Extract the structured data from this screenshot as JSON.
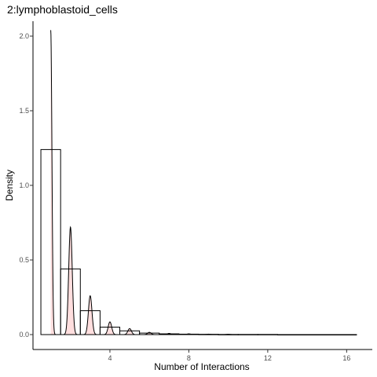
{
  "chart_data": {
    "type": "histogram+density",
    "title": "2:lymphoblastoid_cells",
    "xlabel": "Number of Interactions",
    "ylabel": "Density",
    "xlim": [
      0.1,
      17.3
    ],
    "ylim": [
      -0.1,
      2.1
    ],
    "x_ticks": [
      4,
      8,
      12,
      16
    ],
    "y_ticks": [
      0.0,
      0.5,
      1.0,
      1.5,
      2.0
    ],
    "x_tick_labels": [
      "4",
      "8",
      "12",
      "16"
    ],
    "y_tick_labels": [
      "0.0",
      "0.5",
      "1.0",
      "1.5",
      "2.0"
    ],
    "grid": false,
    "legend": "none",
    "histogram": {
      "bin_width": 1,
      "bins": [
        {
          "center": 1,
          "value": 1.24
        },
        {
          "center": 2,
          "value": 0.44
        },
        {
          "center": 3,
          "value": 0.16
        },
        {
          "center": 4,
          "value": 0.05
        },
        {
          "center": 5,
          "value": 0.025
        },
        {
          "center": 6,
          "value": 0.01
        },
        {
          "center": 7,
          "value": 0.005
        },
        {
          "center": 8,
          "value": 0.003
        },
        {
          "center": 9,
          "value": 0.002
        },
        {
          "center": 10,
          "value": 0.001
        },
        {
          "center": 11,
          "value": 0.001
        },
        {
          "center": 12,
          "value": 0.001
        },
        {
          "center": 13,
          "value": 0.0
        },
        {
          "center": 14,
          "value": 0.0
        },
        {
          "center": 15,
          "value": 0.0
        },
        {
          "center": 16,
          "value": 0.0
        }
      ]
    },
    "density": {
      "x_range": [
        1.0,
        16.3
      ],
      "peaks": [
        {
          "x": 1.0,
          "y": 2.04
        },
        {
          "x": 2.0,
          "y": 0.72
        },
        {
          "x": 3.0,
          "y": 0.26
        },
        {
          "x": 4.0,
          "y": 0.085
        },
        {
          "x": 5.0,
          "y": 0.04
        },
        {
          "x": 6.0,
          "y": 0.015
        },
        {
          "x": 7.0,
          "y": 0.008
        },
        {
          "x": 8.0,
          "y": 0.005
        },
        {
          "x": 9.0,
          "y": 0.003
        },
        {
          "x": 10.0,
          "y": 0.002
        }
      ],
      "fill_color": "#ffdede",
      "line_color": "#000000"
    }
  }
}
